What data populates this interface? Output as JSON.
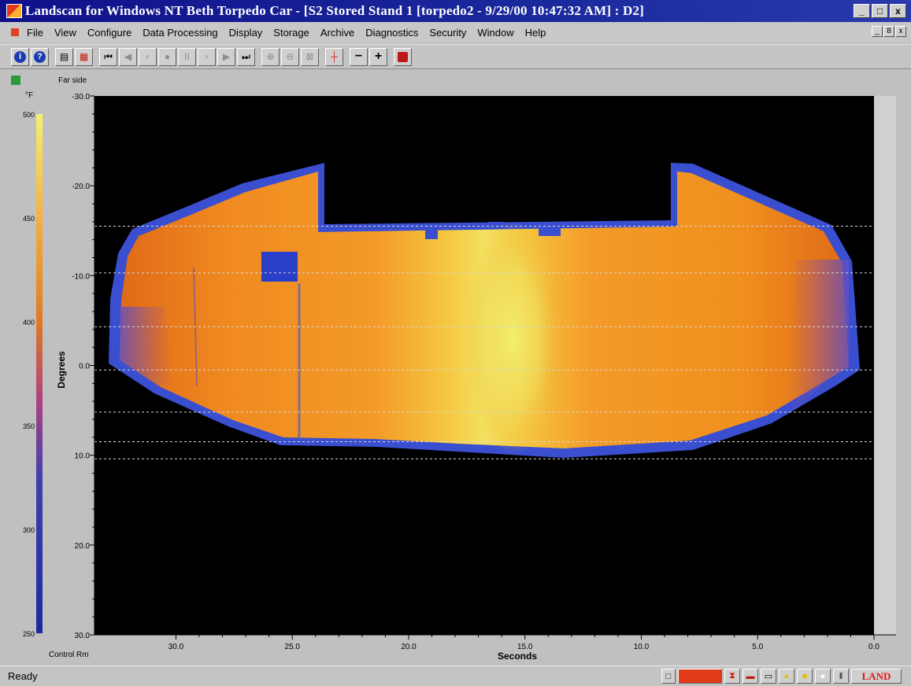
{
  "window": {
    "title": "Landscan for Windows NT  Beth Torpedo Car - [S2 Stored Stand 1 [torpedo2 - 9/29/00 10:47:32 AM] : D2]",
    "buttons": {
      "minimize": "_",
      "maximize": "□",
      "close": "x"
    }
  },
  "menu": {
    "items": [
      "File",
      "View",
      "Configure",
      "Data Processing",
      "Display",
      "Storage",
      "Archive",
      "Diagnostics",
      "Security",
      "Window",
      "Help"
    ],
    "mdi_buttons": [
      "_",
      "8",
      "x"
    ]
  },
  "toolbar": {
    "icons": [
      "info-icon",
      "help-icon",
      "print-icon",
      "print-preview-icon",
      "skip-first-icon",
      "step-back-icon",
      "prev-icon",
      "stop-icon",
      "pause-icon",
      "next-icon",
      "play-icon",
      "skip-last-icon",
      "zoom-in-icon",
      "zoom-out-icon",
      "zoom-fit-icon",
      "crosshair-icon",
      "minus-icon",
      "plus-icon",
      "record-icon"
    ]
  },
  "colorbar": {
    "unit": "°F",
    "ticks": [
      "500",
      "450",
      "400",
      "350",
      "300",
      "250"
    ],
    "range": [
      250,
      500
    ],
    "colors": [
      "#1c2a9c",
      "#4040b0",
      "#b04080",
      "#e07a20",
      "#f5b040",
      "#f5f070"
    ]
  },
  "plot": {
    "top_label": "Far side",
    "bottom_label": "Control Rm",
    "background": "#000000",
    "shell_color": "#3a4ed0"
  },
  "chart_data": {
    "type": "heatmap",
    "title": "",
    "xlabel": "Seconds",
    "ylabel": "Degrees",
    "xlim": [
      33.5,
      0.0
    ],
    "ylim": [
      -30.0,
      30.0
    ],
    "x_ticks": [
      "30.0",
      "25.0",
      "20.0",
      "15.0",
      "10.0",
      "5.0",
      "0.0"
    ],
    "y_ticks": [
      "-30.0",
      "-20.0",
      "-10.0",
      "0.0",
      "10.0",
      "20.0",
      "30.0"
    ],
    "y_tick_values": [
      -30,
      -20,
      -10,
      0,
      10,
      20,
      30
    ],
    "x_tick_values": [
      30,
      25,
      20,
      15,
      10,
      5,
      0
    ],
    "reference_lines_degrees": [
      -15.5,
      -10.3,
      -4.3,
      0.5,
      5.2,
      8.5,
      10.4
    ],
    "hotspot_seconds": [
      17.5,
      13.5
    ],
    "grid": false
  },
  "status": {
    "text": "Ready",
    "brand": "LAND"
  }
}
